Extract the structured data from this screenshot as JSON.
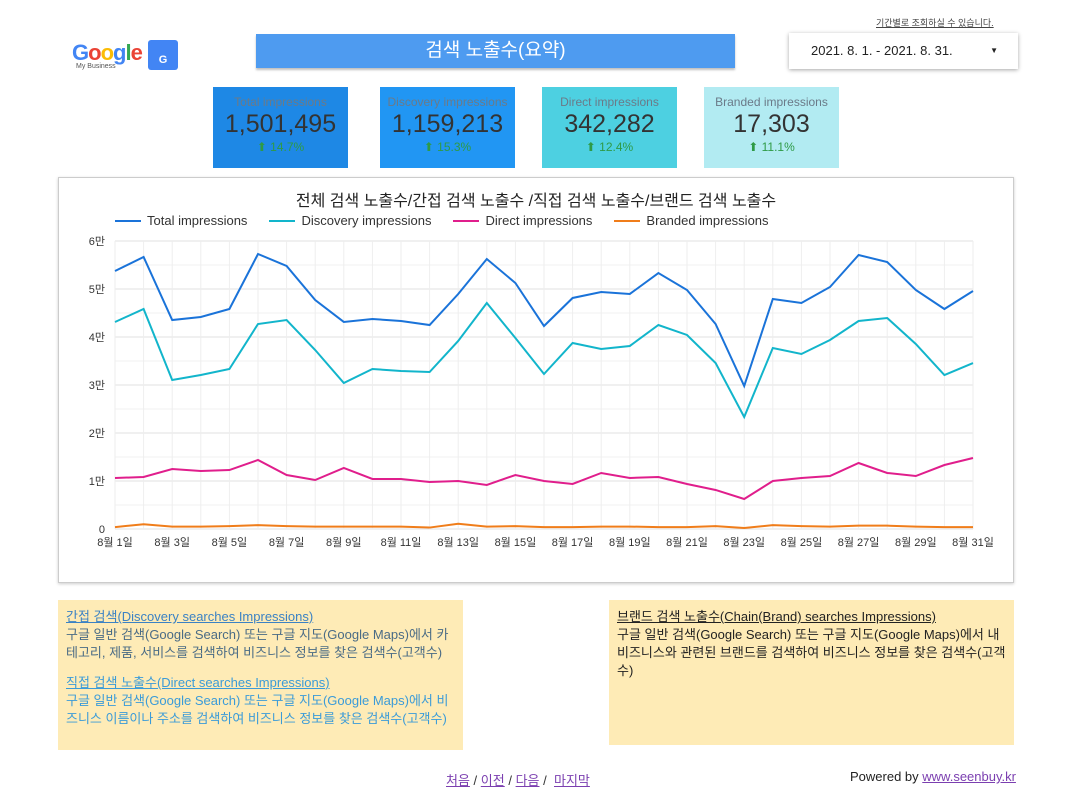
{
  "header": {
    "hint": "기간별로 조회하실 수 있습니다.",
    "logo_text": "Google",
    "logo_sub": "My Business",
    "title": "검색 노출수(요약)",
    "date_range": "2021. 8. 1. - 2021. 8. 31."
  },
  "kpis": [
    {
      "label": "Total impressions",
      "value": "1,501,495",
      "change": "14.7%",
      "color": "#1e88e5"
    },
    {
      "label": "Discovery impressions",
      "value": "1,159,213",
      "change": "15.3%",
      "color": "#2196f3"
    },
    {
      "label": "Direct impressions",
      "value": "342,282",
      "change": "12.4%",
      "color": "#4dd0e1"
    },
    {
      "label": "Branded impressions",
      "value": "17,303",
      "change": "11.1%",
      "color": "#b2ebf2"
    }
  ],
  "chart_data": {
    "type": "line",
    "title": "전체 검색 노출수/간접 검색 노출수 /직접 검색 노출수/브랜드 검색 노출수",
    "legend_position": "top",
    "grid": true,
    "ylim": [
      0,
      60000
    ],
    "yticks": [
      {
        "v": 0,
        "label": "0"
      },
      {
        "v": 10000,
        "label": "1만"
      },
      {
        "v": 20000,
        "label": "2만"
      },
      {
        "v": 30000,
        "label": "3만"
      },
      {
        "v": 40000,
        "label": "4만"
      },
      {
        "v": 50000,
        "label": "5만"
      },
      {
        "v": 60000,
        "label": "6만"
      }
    ],
    "x": [
      "8월 1일",
      "8월 2일",
      "8월 3일",
      "8월 4일",
      "8월 5일",
      "8월 6일",
      "8월 7일",
      "8월 8일",
      "8월 9일",
      "8월 10일",
      "8월 11일",
      "8월 12일",
      "8월 13일",
      "8월 14일",
      "8월 15일",
      "8월 16일",
      "8월 17일",
      "8월 18일",
      "8월 19일",
      "8월 20일",
      "8월 21일",
      "8월 22일",
      "8월 23일",
      "8월 24일",
      "8월 25일",
      "8월 26일",
      "8월 27일",
      "8월 28일",
      "8월 29일",
      "8월 30일",
      "8월 31일"
    ],
    "series": [
      {
        "name": "Total impressions",
        "color": "#1a73d9",
        "values": [
          53750,
          56670,
          43540,
          44170,
          45830,
          57290,
          54790,
          47710,
          43130,
          43750,
          43330,
          42500,
          48960,
          56250,
          51250,
          42290,
          48130,
          49380,
          48960,
          53330,
          49790,
          42710,
          29790,
          47920,
          47080,
          50420,
          57080,
          55630,
          49790,
          45830,
          49580
        ]
      },
      {
        "name": "Discovery impressions",
        "color": "#12b5cb",
        "values": [
          43130,
          45830,
          31040,
          32080,
          33330,
          42710,
          43540,
          37290,
          30420,
          33330,
          32920,
          32710,
          39170,
          47080,
          39790,
          32290,
          38750,
          37500,
          38130,
          42500,
          40420,
          34580,
          23330,
          37710,
          36460,
          39380,
          43330,
          43960,
          38540,
          32080,
          34580
        ]
      },
      {
        "name": "Direct impressions",
        "color": "#e01e8c",
        "values": [
          10630,
          10830,
          12500,
          12080,
          12290,
          14380,
          11250,
          10210,
          12710,
          10420,
          10420,
          9790,
          10000,
          9170,
          11250,
          10000,
          9380,
          11670,
          10630,
          10830,
          9380,
          8130,
          6250,
          10000,
          10630,
          11040,
          13750,
          11670,
          11040,
          13330,
          14790
        ]
      },
      {
        "name": "Branded impressions",
        "color": "#f07d1a",
        "values": [
          400,
          1000,
          500,
          500,
          600,
          800,
          600,
          500,
          500,
          500,
          500,
          300,
          1100,
          500,
          600,
          400,
          400,
          500,
          500,
          400,
          400,
          600,
          200,
          800,
          600,
          500,
          700,
          700,
          500,
          400,
          400
        ]
      }
    ]
  },
  "notes": {
    "discovery_title": "간접 검색(Discovery searches Impressions)",
    "discovery_body": "구글 일반 검색(Google Search) 또는 구글 지도(Google Maps)에서 카테고리, 제품, 서비스를 검색하여 비즈니스 정보를 찾은 검색수(고객수)",
    "direct_title": "직접 검색 노출수(Direct searches Impressions)",
    "direct_body": "구글 일반 검색(Google Search) 또는 구글 지도(Google Maps)에서 비즈니스 이름이나 주소를 검색하여 비즈니스 정보를 찾은 검색수(고객수)",
    "brand_title": "브랜드 검색 노출수(Chain(Brand) searches Impressions)",
    "brand_body": "구글 일반 검색(Google Search) 또는 구글 지도(Google Maps)에서 내 비즈니스와 관련된 브랜드를 검색하여 비즈니스 정보를 찾은 검색수(고객수)"
  },
  "pager": {
    "first": "처음",
    "prev": "이전",
    "next": "다음",
    "last": "마지막",
    "sep": "/"
  },
  "footer": {
    "powered": "Powered by ",
    "link": "www.seenbuy.kr"
  }
}
